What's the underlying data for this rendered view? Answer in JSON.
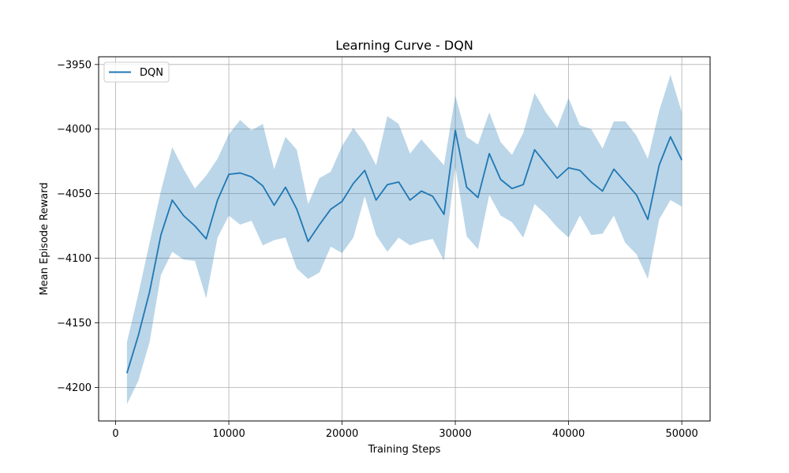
{
  "chart_data": {
    "type": "line",
    "title": "Learning Curve - DQN",
    "xlabel": "Training Steps",
    "ylabel": "Mean Episode Reward",
    "xlim": [
      -1500,
      52500
    ],
    "ylim": [
      -4226,
      -3944
    ],
    "xticks": [
      0,
      10000,
      20000,
      30000,
      40000,
      50000
    ],
    "xtick_labels": [
      "0",
      "10000",
      "20000",
      "30000",
      "40000",
      "50000"
    ],
    "yticks": [
      -4200,
      -4150,
      -4100,
      -4050,
      -4000,
      -3950
    ],
    "ytick_labels": [
      "−4200",
      "−4150",
      "−4100",
      "−4050",
      "−4000",
      "−3950"
    ],
    "grid": true,
    "legend_position": "top-left",
    "line_color": "#1f77b4",
    "band_color": "#1f77b4",
    "series": [
      {
        "name": "DQN",
        "x": [
          1000,
          2000,
          3000,
          4000,
          5000,
          6000,
          7000,
          8000,
          9000,
          10000,
          11000,
          12000,
          13000,
          14000,
          15000,
          16000,
          17000,
          18000,
          19000,
          20000,
          21000,
          22000,
          23000,
          24000,
          25000,
          26000,
          27000,
          28000,
          29000,
          30000,
          31000,
          32000,
          33000,
          34000,
          35000,
          36000,
          37000,
          38000,
          39000,
          40000,
          41000,
          42000,
          43000,
          44000,
          45000,
          46000,
          47000,
          48000,
          49000,
          50000
        ],
        "y": [
          -4189,
          -4160,
          -4126,
          -4082,
          -4055,
          -4067,
          -4075,
          -4085,
          -4055,
          -4035,
          -4034,
          -4037,
          -4044,
          -4059,
          -4045,
          -4062,
          -4087,
          -4074,
          -4062,
          -4056,
          -4042,
          -4032,
          -4055,
          -4043,
          -4041,
          -4055,
          -4048,
          -4052,
          -4066,
          -4001,
          -4045,
          -4053,
          -4019,
          -4039,
          -4046,
          -4043,
          -4016,
          -4027,
          -4038,
          -4030,
          -4032,
          -4041,
          -4048,
          -4031,
          -4041,
          -4051,
          -4070,
          -4028,
          -4006,
          -4024
        ],
        "upper": [
          -4165,
          -4128,
          -4088,
          -4048,
          -4014,
          -4031,
          -4046,
          -4036,
          -4023,
          -4004,
          -3993,
          -4001,
          -3996,
          -4031,
          -4006,
          -4016,
          -4058,
          -4038,
          -4033,
          -4013,
          -3999,
          -4011,
          -4028,
          -3990,
          -3996,
          -4019,
          -4008,
          -4018,
          -4028,
          -3974,
          -4006,
          -4012,
          -3987,
          -4010,
          -4020,
          -4003,
          -3972,
          -3987,
          -3999,
          -3976,
          -3997,
          -4000,
          -4015,
          -3994,
          -3994,
          -4005,
          -4023,
          -3986,
          -3958,
          -3987
        ],
        "lower": [
          -4213,
          -4195,
          -4165,
          -4113,
          -4095,
          -4101,
          -4102,
          -4131,
          -4084,
          -4067,
          -4074,
          -4071,
          -4090,
          -4086,
          -4084,
          -4108,
          -4116,
          -4111,
          -4091,
          -4096,
          -4084,
          -4052,
          -4082,
          -4095,
          -4084,
          -4090,
          -4087,
          -4085,
          -4102,
          -4029,
          -4083,
          -4093,
          -4051,
          -4067,
          -4072,
          -4084,
          -4058,
          -4066,
          -4076,
          -4084,
          -4067,
          -4082,
          -4081,
          -4067,
          -4088,
          -4097,
          -4116,
          -4070,
          -4055,
          -4060
        ]
      }
    ]
  }
}
